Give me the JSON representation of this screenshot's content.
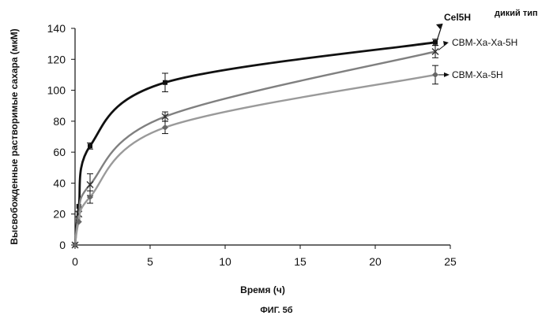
{
  "chart_data": {
    "type": "line",
    "xlabel": "Время (ч)",
    "ylabel": "Высвобожденные растворимые сахара (мкМ)",
    "xlim": [
      0,
      25
    ],
    "ylim": [
      0,
      140
    ],
    "xticks": [
      0,
      5,
      10,
      15,
      20,
      25
    ],
    "yticks": [
      0,
      20,
      40,
      60,
      80,
      100,
      120,
      140
    ],
    "grid": false,
    "series": [
      {
        "name": "Cel5H",
        "annotation": "дикий тип",
        "color": "#111111",
        "marker": "square",
        "x": [
          0,
          0.25,
          1,
          6,
          24
        ],
        "y": [
          0,
          25,
          64,
          105,
          131
        ],
        "error": [
          0,
          2,
          2,
          6,
          2
        ]
      },
      {
        "name": "CBM-Xa-Xa-5H",
        "color": "#808080",
        "marker": "x",
        "x": [
          0,
          0.25,
          1,
          6,
          24
        ],
        "y": [
          0,
          20,
          39,
          83,
          125
        ],
        "error": [
          0,
          2,
          7,
          3,
          4
        ]
      },
      {
        "name": "CBM-Xa-5H",
        "color": "#9a9a9a",
        "marker": "diamond",
        "x": [
          0,
          0.25,
          1,
          6,
          24
        ],
        "y": [
          0,
          15,
          31,
          76,
          110
        ],
        "error": [
          0,
          2,
          4,
          4,
          6
        ]
      }
    ]
  },
  "caption": "ФИГ. 5б"
}
